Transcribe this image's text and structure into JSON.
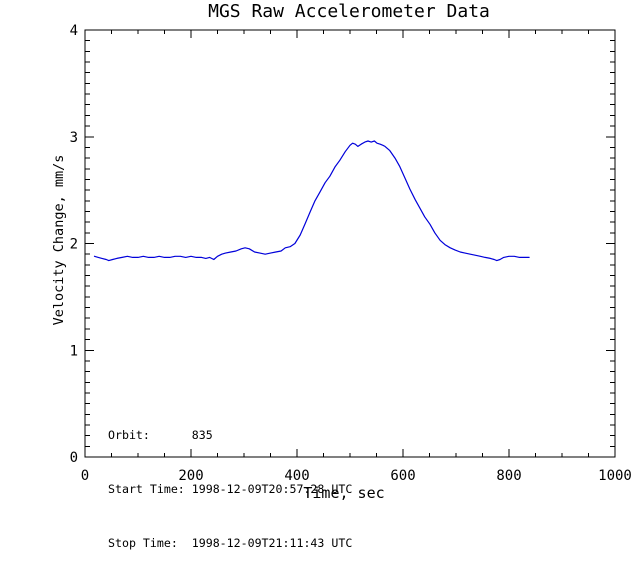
{
  "colors": {
    "background": "#ffffff",
    "axis": "#000000",
    "text": "#000000",
    "line": "#0000da"
  },
  "chart_data": {
    "type": "line",
    "title": "MGS Raw Accelerometer Data",
    "xlabel": "Time, sec",
    "ylabel": "Velocity Change, mm/s",
    "xlim": [
      0,
      1000
    ],
    "ylim": [
      0,
      4
    ],
    "x_major_ticks": [
      0,
      200,
      400,
      600,
      800,
      1000
    ],
    "y_major_ticks": [
      0,
      1,
      2,
      3,
      4
    ],
    "x_minor_step": 50,
    "y_minor_step": 0.1,
    "grid": false,
    "legend": "none",
    "frame": "box-with-inward-ticks",
    "series": [
      {
        "name": "velocity change",
        "color": "#0000da",
        "points": [
          [
            18,
            1.88
          ],
          [
            25,
            1.87
          ],
          [
            32,
            1.86
          ],
          [
            40,
            1.85
          ],
          [
            45,
            1.84
          ],
          [
            52,
            1.85
          ],
          [
            60,
            1.86
          ],
          [
            70,
            1.87
          ],
          [
            80,
            1.88
          ],
          [
            90,
            1.87
          ],
          [
            100,
            1.87
          ],
          [
            110,
            1.88
          ],
          [
            120,
            1.87
          ],
          [
            130,
            1.87
          ],
          [
            140,
            1.88
          ],
          [
            150,
            1.87
          ],
          [
            160,
            1.87
          ],
          [
            170,
            1.88
          ],
          [
            180,
            1.88
          ],
          [
            190,
            1.87
          ],
          [
            200,
            1.88
          ],
          [
            210,
            1.87
          ],
          [
            220,
            1.87
          ],
          [
            228,
            1.86
          ],
          [
            235,
            1.87
          ],
          [
            243,
            1.85
          ],
          [
            250,
            1.88
          ],
          [
            258,
            1.9
          ],
          [
            265,
            1.91
          ],
          [
            275,
            1.92
          ],
          [
            285,
            1.93
          ],
          [
            295,
            1.95
          ],
          [
            302,
            1.96
          ],
          [
            310,
            1.95
          ],
          [
            320,
            1.92
          ],
          [
            330,
            1.91
          ],
          [
            340,
            1.9
          ],
          [
            350,
            1.91
          ],
          [
            360,
            1.92
          ],
          [
            370,
            1.93
          ],
          [
            378,
            1.96
          ],
          [
            387,
            1.97
          ],
          [
            396,
            2.0
          ],
          [
            406,
            2.08
          ],
          [
            415,
            2.18
          ],
          [
            425,
            2.3
          ],
          [
            434,
            2.4
          ],
          [
            443,
            2.48
          ],
          [
            453,
            2.57
          ],
          [
            462,
            2.63
          ],
          [
            472,
            2.72
          ],
          [
            481,
            2.78
          ],
          [
            491,
            2.86
          ],
          [
            500,
            2.92
          ],
          [
            505,
            2.94
          ],
          [
            510,
            2.93
          ],
          [
            515,
            2.91
          ],
          [
            521,
            2.93
          ],
          [
            528,
            2.95
          ],
          [
            534,
            2.96
          ],
          [
            540,
            2.95
          ],
          [
            546,
            2.96
          ],
          [
            551,
            2.94
          ],
          [
            557,
            2.93
          ],
          [
            562,
            2.92
          ],
          [
            566,
            2.91
          ],
          [
            575,
            2.87
          ],
          [
            585,
            2.8
          ],
          [
            594,
            2.72
          ],
          [
            604,
            2.61
          ],
          [
            613,
            2.51
          ],
          [
            623,
            2.41
          ],
          [
            632,
            2.33
          ],
          [
            641,
            2.25
          ],
          [
            651,
            2.18
          ],
          [
            660,
            2.1
          ],
          [
            670,
            2.03
          ],
          [
            679,
            1.99
          ],
          [
            689,
            1.96
          ],
          [
            698,
            1.94
          ],
          [
            708,
            1.92
          ],
          [
            717,
            1.91
          ],
          [
            727,
            1.9
          ],
          [
            736,
            1.89
          ],
          [
            746,
            1.88
          ],
          [
            755,
            1.87
          ],
          [
            765,
            1.86
          ],
          [
            772,
            1.85
          ],
          [
            777,
            1.84
          ],
          [
            783,
            1.85
          ],
          [
            790,
            1.87
          ],
          [
            800,
            1.88
          ],
          [
            810,
            1.88
          ],
          [
            820,
            1.87
          ],
          [
            830,
            1.87
          ],
          [
            838,
            1.87
          ]
        ]
      }
    ],
    "annotations": {
      "orbit": {
        "label": "Orbit:",
        "value": "835"
      },
      "start_time": {
        "label": "Start Time:",
        "value": "1998-12-09T20:57:28 UTC"
      },
      "stop_time": {
        "label": "Stop Time:",
        "value": "1998-12-09T21:11:43 UTC"
      }
    },
    "annotation_lines": [
      "Orbit:      835",
      "Start Time: 1998-12-09T20:57:28 UTC",
      "Stop Time:  1998-12-09T21:11:43 UTC"
    ]
  }
}
